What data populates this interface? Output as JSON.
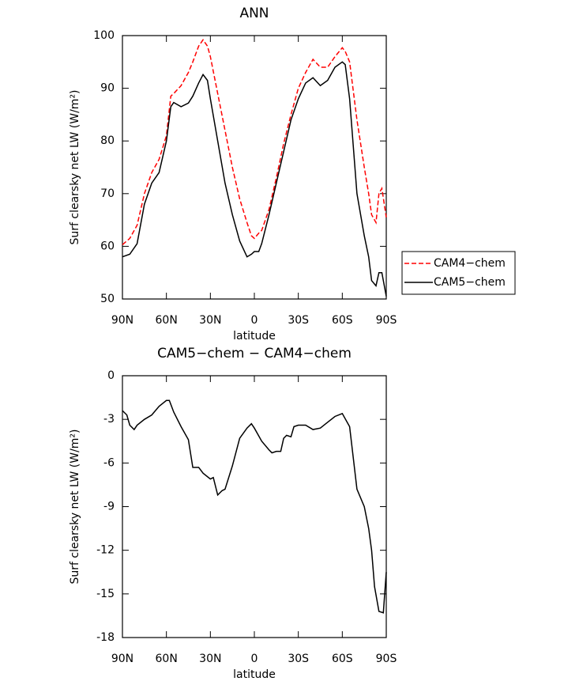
{
  "chart_data": [
    {
      "type": "line",
      "title": "ANN",
      "xlabel": "latitude",
      "ylabel": "Surf clearsky net LW (W/m²)",
      "xlim": [
        90,
        -90
      ],
      "xticks": [
        {
          "value": 90,
          "label": "90N"
        },
        {
          "value": 60,
          "label": "60N"
        },
        {
          "value": 30,
          "label": "30N"
        },
        0,
        {
          "value": -30,
          "label": "30S"
        },
        {
          "value": -60,
          "label": "60S"
        },
        {
          "value": -90,
          "label": "90S"
        }
      ],
      "ylim": [
        50,
        100
      ],
      "yticks": [
        50,
        60,
        70,
        80,
        90,
        100
      ],
      "legend": "right",
      "x": [
        90,
        85,
        80,
        75,
        70,
        65,
        60,
        57,
        55,
        50,
        45,
        42,
        38,
        35,
        32,
        30,
        25,
        20,
        15,
        10,
        5,
        2,
        0,
        -3,
        -5,
        -10,
        -15,
        -20,
        -25,
        -30,
        -35,
        -40,
        -45,
        -50,
        -55,
        -60,
        -62,
        -65,
        -70,
        -75,
        -78,
        -80,
        -83,
        -85,
        -87,
        -90
      ],
      "series": [
        {
          "name": "CAM4−chem",
          "color": "#ff0000",
          "linestyle": "dashed",
          "values": [
            60.3,
            61.5,
            64,
            70,
            74,
            76.5,
            81,
            88.5,
            89,
            90.5,
            93,
            95,
            98,
            99.2,
            98,
            96,
            89,
            82,
            75,
            69,
            64.5,
            62,
            61.5,
            62.5,
            63,
            67,
            73,
            79.5,
            85,
            90,
            93,
            95.5,
            94,
            94,
            96,
            97.7,
            97,
            95,
            84,
            75,
            70,
            66,
            64.5,
            70,
            71,
            65.5
          ]
        },
        {
          "name": "CAM5−chem",
          "color": "#000000",
          "linestyle": "solid",
          "values": [
            58,
            58.5,
            60.5,
            68,
            72,
            74,
            80,
            86.5,
            87.3,
            86.5,
            87.2,
            88.5,
            91,
            92.6,
            91.5,
            88,
            80,
            72,
            66,
            61,
            58,
            58.5,
            59,
            59,
            60.5,
            66,
            72,
            78,
            84,
            88,
            91,
            92,
            90.5,
            91.5,
            94,
            95,
            94.5,
            88,
            70,
            62,
            58,
            53.5,
            52.5,
            55,
            55,
            50.5
          ]
        }
      ]
    },
    {
      "type": "line",
      "title": "CAM5−chem − CAM4−chem",
      "xlabel": "latitude",
      "ylabel": "Surf clearsky net LW (W/m²)",
      "xlim": [
        90,
        -90
      ],
      "xticks": [
        {
          "value": 90,
          "label": "90N"
        },
        {
          "value": 60,
          "label": "60N"
        },
        {
          "value": 30,
          "label": "30N"
        },
        0,
        {
          "value": -30,
          "label": "30S"
        },
        {
          "value": -60,
          "label": "60S"
        },
        {
          "value": -90,
          "label": "90S"
        }
      ],
      "ylim": [
        -18,
        0
      ],
      "yticks": [
        -18,
        -15,
        -12,
        -9,
        -6,
        -3,
        0
      ],
      "x": [
        90,
        87,
        85,
        82,
        80,
        75,
        70,
        65,
        60,
        58,
        55,
        50,
        45,
        42,
        38,
        35,
        30,
        28,
        25,
        22,
        20,
        15,
        10,
        5,
        2,
        0,
        -5,
        -10,
        -12,
        -15,
        -18,
        -20,
        -22,
        -25,
        -27,
        -30,
        -35,
        -40,
        -45,
        -50,
        -55,
        -60,
        -65,
        -70,
        -75,
        -78,
        -80,
        -82,
        -85,
        -88,
        -90
      ],
      "series": [
        {
          "color": "#000000",
          "linestyle": "solid",
          "values": [
            -2.4,
            -2.7,
            -3.4,
            -3.7,
            -3.4,
            -3.0,
            -2.7,
            -2.1,
            -1.7,
            -1.7,
            -2.5,
            -3.5,
            -4.4,
            -6.3,
            -6.3,
            -6.7,
            -7.1,
            -7.0,
            -8.2,
            -7.9,
            -7.8,
            -6.2,
            -4.3,
            -3.6,
            -3.3,
            -3.6,
            -4.5,
            -5.1,
            -5.3,
            -5.2,
            -5.2,
            -4.3,
            -4.1,
            -4.2,
            -3.5,
            -3.4,
            -3.4,
            -3.7,
            -3.6,
            -3.2,
            -2.8,
            -2.6,
            -3.5,
            -7.8,
            -9.0,
            -10.5,
            -12.0,
            -14.5,
            -16.2,
            -16.3,
            -13.5
          ]
        }
      ]
    }
  ]
}
